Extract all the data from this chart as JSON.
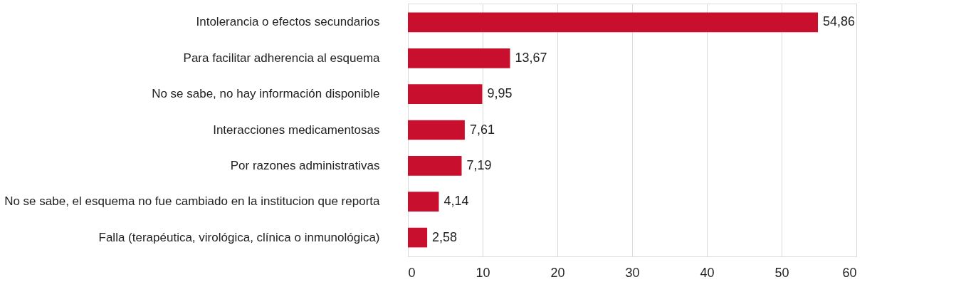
{
  "chart_data": {
    "type": "bar",
    "orientation": "horizontal",
    "categories": [
      "Intolerancia o efectos secundarios",
      "Para facilitar adherencia al esquema",
      "No se sabe, no hay información disponible",
      "Interacciones medicamentosas",
      "Por razones administrativas",
      "No se sabe, el esquema no fue cambiado en la institucion que reporta",
      "Falla (terapéutica, virológica, clínica o inmunológica)"
    ],
    "values": [
      54.86,
      13.67,
      9.95,
      7.61,
      7.19,
      4.14,
      2.58
    ],
    "value_labels": [
      "54,86",
      "13,67",
      "9,95",
      "7,61",
      "7,19",
      "4,14",
      "2,58"
    ],
    "color": "#c8102e",
    "xlim": [
      0,
      60
    ],
    "xticks": [
      0,
      10,
      20,
      30,
      40,
      50,
      60
    ],
    "grid": "x"
  }
}
